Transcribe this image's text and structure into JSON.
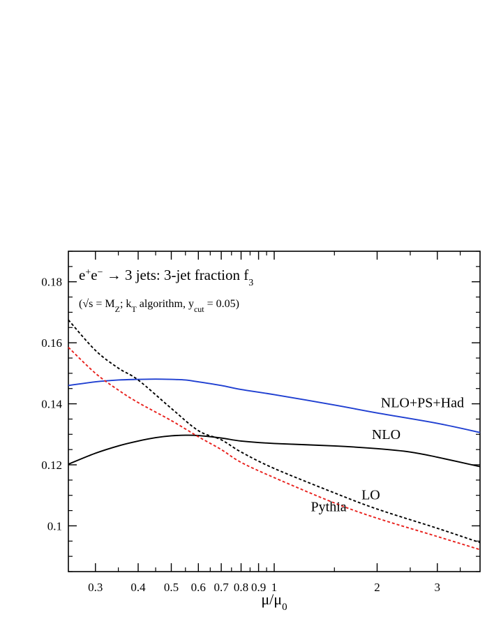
{
  "chart_data": {
    "type": "line",
    "title": "e⁺e⁻ → 3 jets: 3-jet fraction f₃",
    "subtitle": "(√s = M_Z; k_T algorithm, y_cut = 0.05)",
    "xlabel": "μ/μ₀",
    "ylabel": "",
    "xscale": "log",
    "xlim": [
      0.25,
      4.0
    ],
    "ylim": [
      0.085,
      0.19
    ],
    "grid": false,
    "x_ticks": [
      {
        "value": 0.3,
        "label": "0.3"
      },
      {
        "value": 0.4,
        "label": "0.4"
      },
      {
        "value": 0.5,
        "label": "0.5"
      },
      {
        "value": 0.6,
        "label": "0.6"
      },
      {
        "value": 0.7,
        "label": "0.7"
      },
      {
        "value": 0.8,
        "label": "0.8"
      },
      {
        "value": 0.9,
        "label": "0.9"
      },
      {
        "value": 1,
        "label": "1"
      },
      {
        "value": 2,
        "label": "2"
      },
      {
        "value": 3,
        "label": "3"
      }
    ],
    "y_ticks": [
      {
        "value": 0.1,
        "label": "0.1"
      },
      {
        "value": 0.12,
        "label": "0.12"
      },
      {
        "value": 0.14,
        "label": "0.14"
      },
      {
        "value": 0.16,
        "label": "0.16"
      },
      {
        "value": 0.18,
        "label": "0.18"
      }
    ],
    "series": [
      {
        "name": "NLO+PS+Had",
        "color": "#1f3fd1",
        "style": "solid",
        "x": [
          0.25,
          0.3,
          0.35,
          0.4,
          0.45,
          0.5,
          0.55,
          0.6,
          0.7,
          0.8,
          1.0,
          1.5,
          2.0,
          3.0,
          4.0
        ],
        "y": [
          0.146,
          0.1472,
          0.1478,
          0.148,
          0.1481,
          0.148,
          0.1478,
          0.1472,
          0.146,
          0.1447,
          0.143,
          0.1396,
          0.137,
          0.1336,
          0.1306
        ]
      },
      {
        "name": "NLO",
        "color": "#000000",
        "style": "solid",
        "x": [
          0.25,
          0.3,
          0.35,
          0.4,
          0.45,
          0.5,
          0.55,
          0.6,
          0.7,
          0.8,
          1.0,
          1.5,
          2.0,
          2.5,
          3.0,
          4.0
        ],
        "y": [
          0.1202,
          0.1238,
          0.1262,
          0.1278,
          0.1289,
          0.1295,
          0.1297,
          0.1296,
          0.1288,
          0.1278,
          0.127,
          0.1262,
          0.1253,
          0.1242,
          0.1225,
          0.1194
        ]
      },
      {
        "name": "LO",
        "color": "#000000",
        "style": "dashed",
        "x": [
          0.25,
          0.3,
          0.35,
          0.4,
          0.5,
          0.6,
          0.7,
          0.8,
          1.0,
          1.5,
          2.0,
          3.0,
          4.0
        ],
        "y": [
          0.1675,
          0.1575,
          0.1517,
          0.1478,
          0.1385,
          0.1312,
          0.1282,
          0.1242,
          0.1188,
          0.1108,
          0.1055,
          0.0992,
          0.0945
        ]
      },
      {
        "name": "Pythia",
        "color": "#e8201c",
        "style": "dashed",
        "x": [
          0.25,
          0.3,
          0.35,
          0.4,
          0.5,
          0.6,
          0.7,
          0.8,
          1.0,
          1.5,
          2.0,
          3.0,
          4.0
        ],
        "y": [
          0.1585,
          0.15,
          0.1445,
          0.1404,
          0.1345,
          0.1292,
          0.125,
          0.1208,
          0.1158,
          0.1075,
          0.1025,
          0.0965,
          0.0922
        ]
      }
    ],
    "series_labels": [
      {
        "name": "NLO+PS+Had",
        "text": "NLO+PS+Had",
        "x": 2.05,
        "y": 0.1389
      },
      {
        "name": "NLO",
        "text": "NLO",
        "x": 1.93,
        "y": 0.1285
      },
      {
        "name": "LO",
        "text": "LO",
        "x": 1.8,
        "y": 0.1087
      },
      {
        "name": "Pythia",
        "text": "Pythia",
        "x": 1.28,
        "y": 0.1048
      }
    ]
  }
}
